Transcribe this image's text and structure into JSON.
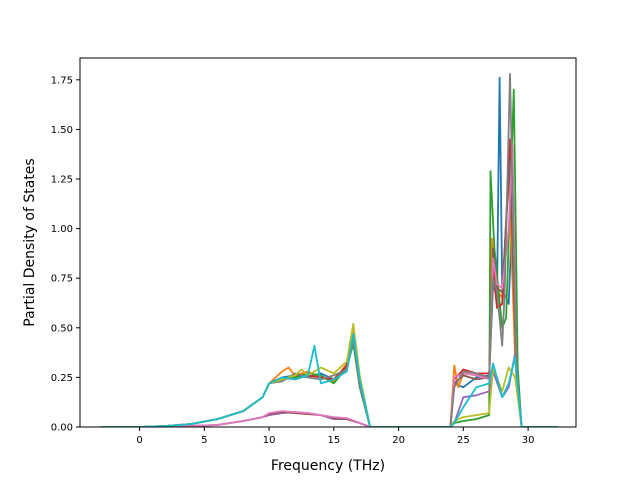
{
  "chart_data": {
    "type": "line",
    "title": "",
    "xlabel": "Frequency (THz)",
    "ylabel": "Partial Density of States",
    "xlim": [
      -4.6,
      33.7
    ],
    "ylim": [
      0,
      1.86
    ],
    "xticks": [
      0,
      5,
      10,
      15,
      20,
      25,
      30
    ],
    "yticks": [
      0.0,
      0.25,
      0.5,
      0.75,
      1.0,
      1.25,
      1.5,
      1.75
    ],
    "ytick_labels": [
      "0.00",
      "0.25",
      "0.50",
      "0.75",
      "1.00",
      "1.25",
      "1.50",
      "1.75"
    ],
    "grid": false,
    "legend": "none",
    "series": [
      {
        "color": "#1f77b4",
        "points": [
          [
            -3,
            0
          ],
          [
            0,
            0
          ],
          [
            2,
            0.005
          ],
          [
            4,
            0.015
          ],
          [
            6,
            0.04
          ],
          [
            8,
            0.08
          ],
          [
            9.5,
            0.15
          ],
          [
            10,
            0.22
          ],
          [
            11,
            0.25
          ],
          [
            12,
            0.26
          ],
          [
            13,
            0.25
          ],
          [
            14,
            0.27
          ],
          [
            15,
            0.24
          ],
          [
            16,
            0.3
          ],
          [
            16.5,
            0.45
          ],
          [
            17,
            0.22
          ],
          [
            17.8,
            0
          ],
          [
            24,
            0
          ],
          [
            24.3,
            0.22
          ],
          [
            25,
            0.2
          ],
          [
            26,
            0.25
          ],
          [
            27,
            0.26
          ],
          [
            27.3,
            0.72
          ],
          [
            27.6,
            0.65
          ],
          [
            27.8,
            1.76
          ],
          [
            28,
            0.7
          ],
          [
            28.5,
            0.62
          ],
          [
            28.8,
            1.1
          ],
          [
            29.2,
            0.2
          ],
          [
            29.5,
            0
          ],
          [
            32.3,
            0
          ]
        ]
      },
      {
        "color": "#ff7f0e",
        "points": [
          [
            -3,
            0
          ],
          [
            0,
            0
          ],
          [
            2,
            0.005
          ],
          [
            4,
            0.015
          ],
          [
            6,
            0.04
          ],
          [
            8,
            0.08
          ],
          [
            9.5,
            0.15
          ],
          [
            10,
            0.22
          ],
          [
            11,
            0.28
          ],
          [
            11.5,
            0.3
          ],
          [
            12,
            0.26
          ],
          [
            13,
            0.28
          ],
          [
            14,
            0.25
          ],
          [
            15,
            0.23
          ],
          [
            16,
            0.32
          ],
          [
            16.5,
            0.48
          ],
          [
            17,
            0.25
          ],
          [
            17.8,
            0
          ],
          [
            24,
            0
          ],
          [
            24.3,
            0.31
          ],
          [
            24.6,
            0.2
          ],
          [
            25,
            0.27
          ],
          [
            26,
            0.26
          ],
          [
            27,
            0.25
          ],
          [
            27.2,
            0.95
          ],
          [
            27.5,
            0.7
          ],
          [
            28,
            0.65
          ],
          [
            28.5,
            1.3
          ],
          [
            29,
            0.35
          ],
          [
            29.5,
            0
          ],
          [
            32.3,
            0
          ]
        ]
      },
      {
        "color": "#2ca02c",
        "points": [
          [
            -3,
            0
          ],
          [
            0,
            0
          ],
          [
            2,
            0.005
          ],
          [
            4,
            0.015
          ],
          [
            6,
            0.04
          ],
          [
            8,
            0.08
          ],
          [
            9.5,
            0.15
          ],
          [
            10,
            0.22
          ],
          [
            11,
            0.24
          ],
          [
            12,
            0.25
          ],
          [
            13,
            0.27
          ],
          [
            14,
            0.26
          ],
          [
            15,
            0.22
          ],
          [
            16,
            0.3
          ],
          [
            16.5,
            0.42
          ],
          [
            17,
            0.2
          ],
          [
            17.8,
            0
          ],
          [
            24,
            0
          ],
          [
            24.3,
            0.02
          ],
          [
            25,
            0.03
          ],
          [
            26,
            0.04
          ],
          [
            27,
            0.06
          ],
          [
            27.1,
            1.29
          ],
          [
            27.4,
            0.9
          ],
          [
            28,
            0.5
          ],
          [
            28.3,
            0.55
          ],
          [
            28.9,
            1.7
          ],
          [
            29.2,
            0.3
          ],
          [
            29.5,
            0
          ],
          [
            32.3,
            0
          ]
        ]
      },
      {
        "color": "#d62728",
        "points": [
          [
            -3,
            0
          ],
          [
            0,
            0
          ],
          [
            2,
            0.005
          ],
          [
            4,
            0.015
          ],
          [
            6,
            0.04
          ],
          [
            8,
            0.08
          ],
          [
            9.5,
            0.15
          ],
          [
            10,
            0.22
          ],
          [
            11,
            0.25
          ],
          [
            12,
            0.24
          ],
          [
            13,
            0.26
          ],
          [
            14,
            0.25
          ],
          [
            15,
            0.24
          ],
          [
            16,
            0.31
          ],
          [
            16.5,
            0.46
          ],
          [
            17,
            0.23
          ],
          [
            17.8,
            0
          ],
          [
            24,
            0
          ],
          [
            24.3,
            0.24
          ],
          [
            25,
            0.29
          ],
          [
            26,
            0.27
          ],
          [
            27,
            0.27
          ],
          [
            27.3,
            0.8
          ],
          [
            27.6,
            0.6
          ],
          [
            28,
            0.62
          ],
          [
            28.6,
            1.45
          ],
          [
            29.1,
            0.3
          ],
          [
            29.5,
            0
          ],
          [
            32.3,
            0
          ]
        ]
      },
      {
        "color": "#9467bd",
        "points": [
          [
            -3,
            0
          ],
          [
            0,
            0
          ],
          [
            3,
            0.003
          ],
          [
            6,
            0.01
          ],
          [
            8,
            0.03
          ],
          [
            9.5,
            0.05
          ],
          [
            10,
            0.06
          ],
          [
            11,
            0.07
          ],
          [
            12,
            0.075
          ],
          [
            13,
            0.07
          ],
          [
            14,
            0.06
          ],
          [
            15,
            0.04
          ],
          [
            16,
            0.04
          ],
          [
            17,
            0.02
          ],
          [
            17.8,
            0
          ],
          [
            24,
            0
          ],
          [
            24.3,
            0.02
          ],
          [
            25,
            0.15
          ],
          [
            26,
            0.16
          ],
          [
            27,
            0.18
          ],
          [
            27.3,
            0.28
          ],
          [
            28,
            0.15
          ],
          [
            28.5,
            0.2
          ],
          [
            29,
            0.37
          ],
          [
            29.5,
            0
          ],
          [
            32.3,
            0
          ]
        ]
      },
      {
        "color": "#8c564b",
        "points": [
          [
            -3,
            0
          ],
          [
            0,
            0
          ],
          [
            3,
            0.003
          ],
          [
            6,
            0.01
          ],
          [
            8,
            0.03
          ],
          [
            9.5,
            0.05
          ],
          [
            10,
            0.065
          ],
          [
            11,
            0.075
          ],
          [
            12,
            0.07
          ],
          [
            13,
            0.065
          ],
          [
            14,
            0.06
          ],
          [
            15,
            0.045
          ],
          [
            16,
            0.04
          ],
          [
            17,
            0.02
          ],
          [
            17.8,
            0
          ],
          [
            24,
            0
          ],
          [
            24.3,
            0.22
          ],
          [
            25,
            0.26
          ],
          [
            26,
            0.24
          ],
          [
            27,
            0.25
          ],
          [
            27.3,
            0.9
          ],
          [
            27.6,
            0.7
          ],
          [
            28,
            0.68
          ],
          [
            28.6,
            1.35
          ],
          [
            29.1,
            0.25
          ],
          [
            29.5,
            0
          ],
          [
            32.3,
            0
          ]
        ]
      },
      {
        "color": "#e377c2",
        "points": [
          [
            -3,
            0
          ],
          [
            0,
            0
          ],
          [
            3,
            0.003
          ],
          [
            6,
            0.01
          ],
          [
            8,
            0.03
          ],
          [
            9.5,
            0.05
          ],
          [
            10,
            0.07
          ],
          [
            11,
            0.08
          ],
          [
            12,
            0.075
          ],
          [
            13,
            0.07
          ],
          [
            14,
            0.06
          ],
          [
            15,
            0.05
          ],
          [
            16,
            0.045
          ],
          [
            17,
            0.02
          ],
          [
            17.8,
            0
          ],
          [
            24,
            0
          ],
          [
            24.3,
            0.25
          ],
          [
            25,
            0.27
          ],
          [
            26,
            0.26
          ],
          [
            27,
            0.24
          ],
          [
            27.3,
            0.85
          ],
          [
            27.6,
            0.72
          ],
          [
            28,
            0.7
          ],
          [
            28.5,
            1.0
          ],
          [
            28.8,
            1.42
          ],
          [
            29.1,
            0.28
          ],
          [
            29.5,
            0
          ],
          [
            32.3,
            0
          ]
        ]
      },
      {
        "color": "#7f7f7f",
        "points": [
          [
            -3,
            0
          ],
          [
            0,
            0
          ],
          [
            2,
            0.005
          ],
          [
            4,
            0.015
          ],
          [
            6,
            0.04
          ],
          [
            8,
            0.08
          ],
          [
            9.5,
            0.15
          ],
          [
            10,
            0.22
          ],
          [
            11,
            0.23
          ],
          [
            12,
            0.27
          ],
          [
            13,
            0.25
          ],
          [
            14,
            0.24
          ],
          [
            15,
            0.26
          ],
          [
            16,
            0.29
          ],
          [
            16.5,
            0.44
          ],
          [
            17,
            0.21
          ],
          [
            17.8,
            0
          ],
          [
            24,
            0
          ],
          [
            24.3,
            0.2
          ],
          [
            25,
            0.28
          ],
          [
            26,
            0.27
          ],
          [
            27,
            0.25
          ],
          [
            27.3,
            0.75
          ],
          [
            27.6,
            0.68
          ],
          [
            28,
            0.41
          ],
          [
            28.2,
            0.7
          ],
          [
            28.6,
            1.78
          ],
          [
            29.1,
            0.25
          ],
          [
            29.5,
            0
          ],
          [
            32.3,
            0
          ]
        ]
      },
      {
        "color": "#bcbd22",
        "points": [
          [
            -3,
            0
          ],
          [
            0,
            0
          ],
          [
            2,
            0.005
          ],
          [
            4,
            0.015
          ],
          [
            6,
            0.04
          ],
          [
            8,
            0.08
          ],
          [
            9.5,
            0.15
          ],
          [
            10,
            0.22
          ],
          [
            11,
            0.24
          ],
          [
            12,
            0.26
          ],
          [
            12.5,
            0.29
          ],
          [
            13,
            0.26
          ],
          [
            14,
            0.3
          ],
          [
            15,
            0.27
          ],
          [
            16,
            0.33
          ],
          [
            16.5,
            0.52
          ],
          [
            17,
            0.26
          ],
          [
            17.8,
            0
          ],
          [
            24,
            0
          ],
          [
            24.3,
            0.03
          ],
          [
            25,
            0.05
          ],
          [
            26,
            0.06
          ],
          [
            27,
            0.07
          ],
          [
            27.3,
            0.3
          ],
          [
            28,
            0.18
          ],
          [
            28.5,
            0.3
          ],
          [
            29,
            0.25
          ],
          [
            29.5,
            0
          ],
          [
            32.3,
            0
          ]
        ]
      },
      {
        "color": "#17becf",
        "points": [
          [
            -3,
            0
          ],
          [
            0,
            0
          ],
          [
            2,
            0.005
          ],
          [
            4,
            0.015
          ],
          [
            6,
            0.04
          ],
          [
            8,
            0.08
          ],
          [
            9.5,
            0.15
          ],
          [
            10,
            0.22
          ],
          [
            11,
            0.25
          ],
          [
            12,
            0.24
          ],
          [
            13,
            0.26
          ],
          [
            13.5,
            0.41
          ],
          [
            14,
            0.22
          ],
          [
            15,
            0.24
          ],
          [
            16,
            0.28
          ],
          [
            16.5,
            0.47
          ],
          [
            17,
            0.24
          ],
          [
            17.8,
            0
          ],
          [
            24,
            0
          ],
          [
            24.3,
            0.02
          ],
          [
            25,
            0.1
          ],
          [
            26,
            0.2
          ],
          [
            27,
            0.22
          ],
          [
            27.3,
            0.32
          ],
          [
            28,
            0.15
          ],
          [
            28.5,
            0.22
          ],
          [
            29,
            0.35
          ],
          [
            29.5,
            0
          ],
          [
            32.3,
            0
          ]
        ]
      }
    ]
  }
}
